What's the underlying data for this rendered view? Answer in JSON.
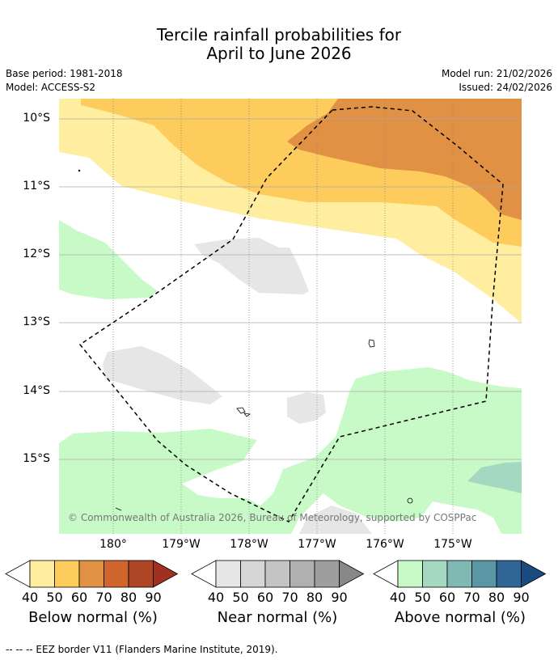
{
  "title": {
    "line1": "Tercile rainfall probabilities for",
    "line2": "April to June 2026"
  },
  "meta": {
    "base_period": "Base period: 1981-2018",
    "model": "Model: ACCESS-S2",
    "model_run": "Model run: 21/02/2026",
    "issued": "Issued: 24/02/2026"
  },
  "map": {
    "lat_labels": [
      "10°S",
      "11°S",
      "12°S",
      "13°S",
      "14°S",
      "15°S"
    ],
    "lon_labels": [
      "180°",
      "179°W",
      "178°W",
      "177°W",
      "176°W",
      "175°W"
    ],
    "copyright": "© Commonwealth of Australia 2026, Bureau of Meteorology, supported by COSPPac",
    "colors": {
      "below_40": "#ffeda0",
      "below_50": "#fecc5c",
      "below_60": "#e09144",
      "near_40": "#e6e6e6",
      "above_40": "#c8fac8",
      "above_50": "#a4d8c0",
      "eez": "#000000",
      "grid": "#aaaaaa"
    }
  },
  "colorbars": [
    {
      "name": "below",
      "title": "Below normal (%)",
      "ticks": [
        "40",
        "50",
        "60",
        "70",
        "80",
        "90"
      ],
      "colors": [
        "#ffeda0",
        "#fecc5c",
        "#e09144",
        "#d0662e",
        "#ae4524",
        "#a03020"
      ]
    },
    {
      "name": "near",
      "title": "Near normal (%)",
      "ticks": [
        "40",
        "50",
        "60",
        "70",
        "80",
        "90"
      ],
      "colors": [
        "#e6e6e6",
        "#d6d6d6",
        "#c4c4c4",
        "#b0b0b0",
        "#9e9e9e",
        "#888888"
      ]
    },
    {
      "name": "above",
      "title": "Above normal (%)",
      "ticks": [
        "40",
        "50",
        "60",
        "70",
        "80",
        "90"
      ],
      "colors": [
        "#c8fac8",
        "#a4d8c0",
        "#80b8b4",
        "#5a96a4",
        "#306696",
        "#1a4a80"
      ]
    }
  ],
  "footnote": "--  --  -- EEZ border V11 (Flanders Marine Institute, 2019)."
}
